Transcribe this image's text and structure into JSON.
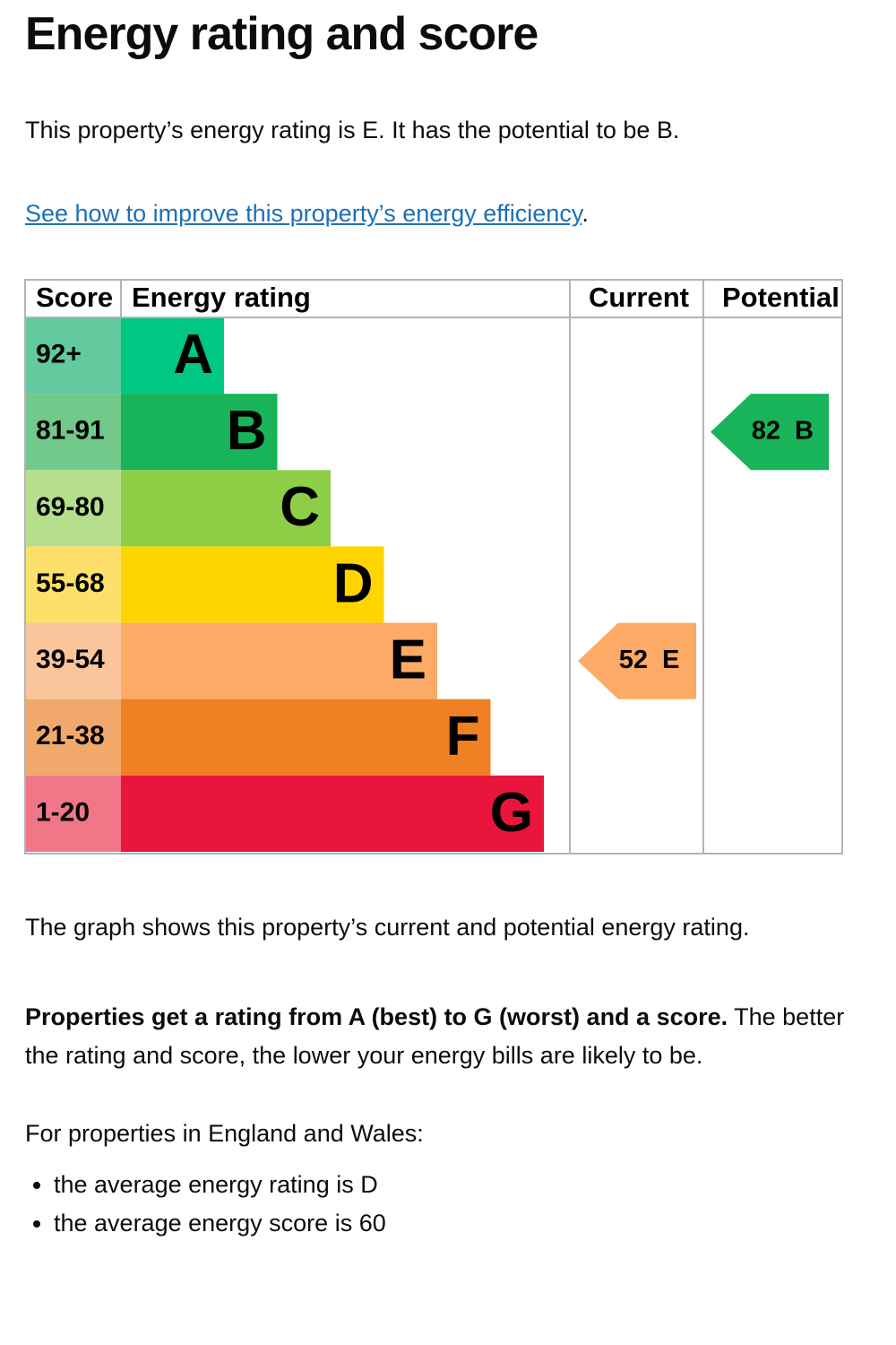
{
  "header": {
    "title": "Energy rating and score"
  },
  "intro": "This property’s energy rating is E. It has the potential to be B.",
  "link": {
    "text": "See how to improve this property’s energy efficiency",
    "suffix": "."
  },
  "chart": {
    "headers": [
      "Score",
      "Energy rating",
      "Current",
      "Potential"
    ],
    "bands": [
      {
        "score": "92+",
        "rating": "A",
        "score_color": "#63c99f",
        "bar_color": "#00c781"
      },
      {
        "score": "81-91",
        "rating": "B",
        "score_color": "#71c98a",
        "bar_color": "#19b459"
      },
      {
        "score": "69-80",
        "rating": "C",
        "score_color": "#b6df8c",
        "bar_color": "#8dce46"
      },
      {
        "score": "55-68",
        "rating": "D",
        "score_color": "#fce06a",
        "bar_color": "#ffd500"
      },
      {
        "score": "39-54",
        "rating": "E",
        "score_color": "#fbc59b",
        "bar_color": "#fcaa65"
      },
      {
        "score": "21-38",
        "rating": "F",
        "score_color": "#f0a96a",
        "bar_color": "#ef8023"
      },
      {
        "score": "1-20",
        "rating": "G",
        "score_color": "#f07688",
        "bar_color": "#e9153b"
      }
    ],
    "current": {
      "score": 52,
      "rating": "E"
    },
    "potential": {
      "score": 82,
      "rating": "B"
    }
  },
  "graph_note": "The graph shows this property’s current and potential energy rating.",
  "explanation": {
    "bold": "Properties get a rating from A (best) to G (worst) and a score.",
    "rest": " The better the rating and score, the lower your energy bills are likely to be."
  },
  "region_intro": "For properties in England and Wales:",
  "averages": [
    "the average energy rating is D",
    "the average energy score is 60"
  ]
}
